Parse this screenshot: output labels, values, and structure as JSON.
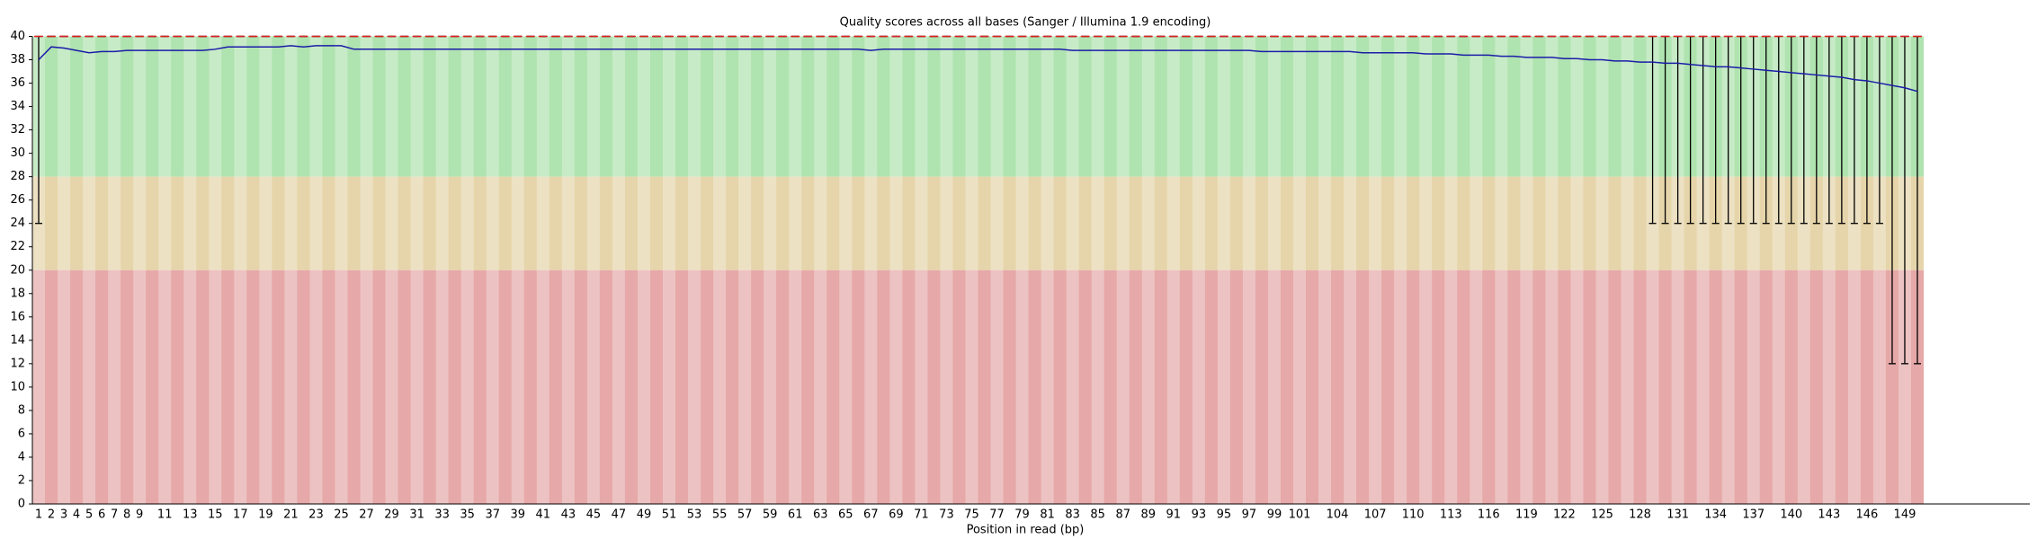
{
  "chart_data": {
    "type": "box",
    "title": "Quality scores across all bases (Sanger / Illumina 1.9 encoding)",
    "x_label": "Position in read (bp)",
    "categories": [
      "1",
      "2",
      "3",
      "4",
      "5",
      "6",
      "7",
      "8",
      "9",
      null,
      "11",
      null,
      "13",
      null,
      "15",
      null,
      "17",
      null,
      "19",
      null,
      "21",
      null,
      "23",
      null,
      "25",
      null,
      "27",
      null,
      "29",
      null,
      "31",
      null,
      "33",
      null,
      "35",
      null,
      "37",
      null,
      "39",
      null,
      "41",
      null,
      "43",
      null,
      "45",
      null,
      "47",
      null,
      "49",
      null,
      "51",
      null,
      "53",
      null,
      "55",
      null,
      "57",
      null,
      "59",
      null,
      "61",
      null,
      "63",
      null,
      "65",
      null,
      "67",
      null,
      "69",
      null,
      "71",
      null,
      "73",
      null,
      "75",
      null,
      "77",
      null,
      "79",
      null,
      "81",
      null,
      "83",
      null,
      "85",
      null,
      "87",
      null,
      "89",
      null,
      "91",
      null,
      "93",
      null,
      "95",
      null,
      "97",
      null,
      "99",
      null,
      "101",
      null,
      null,
      "104",
      null,
      null,
      "107",
      null,
      null,
      "110",
      null,
      null,
      "113",
      null,
      null,
      "116",
      null,
      null,
      "119",
      null,
      null,
      "122",
      null,
      null,
      "125",
      null,
      null,
      "128",
      null,
      null,
      "131",
      null,
      null,
      "134",
      null,
      null,
      "137",
      null,
      null,
      "140",
      null,
      null,
      "143",
      null,
      null,
      "146",
      null,
      null,
      "149",
      null
    ],
    "mean": {
      "color": "#1c1ca8",
      "values": [
        38.0,
        39.1,
        39.0,
        38.8,
        38.6,
        38.7,
        38.7,
        38.8,
        38.8,
        38.8,
        38.8,
        38.8,
        38.8,
        38.8,
        38.9,
        39.1,
        39.1,
        39.1,
        39.1,
        39.1,
        39.2,
        39.1,
        39.2,
        39.2,
        39.2,
        38.9,
        38.9,
        38.9,
        38.9,
        38.9,
        38.9,
        38.9,
        38.9,
        38.9,
        38.9,
        38.9,
        38.9,
        38.9,
        38.9,
        38.9,
        38.9,
        38.9,
        38.9,
        38.9,
        38.9,
        38.9,
        38.9,
        38.9,
        38.9,
        38.9,
        38.9,
        38.9,
        38.9,
        38.9,
        38.9,
        38.9,
        38.9,
        38.9,
        38.9,
        38.9,
        38.9,
        38.9,
        38.9,
        38.9,
        38.9,
        38.9,
        38.8,
        38.9,
        38.9,
        38.9,
        38.9,
        38.9,
        38.9,
        38.9,
        38.9,
        38.9,
        38.9,
        38.9,
        38.9,
        38.9,
        38.9,
        38.9,
        38.8,
        38.8,
        38.8,
        38.8,
        38.8,
        38.8,
        38.8,
        38.8,
        38.8,
        38.8,
        38.8,
        38.8,
        38.8,
        38.8,
        38.8,
        38.7,
        38.7,
        38.7,
        38.7,
        38.7,
        38.7,
        38.7,
        38.7,
        38.6,
        38.6,
        38.6,
        38.6,
        38.6,
        38.5,
        38.5,
        38.5,
        38.4,
        38.4,
        38.4,
        38.3,
        38.3,
        38.2,
        38.2,
        38.2,
        38.1,
        38.1,
        38.0,
        38.0,
        37.9,
        37.9,
        37.8,
        37.8,
        37.7,
        37.7,
        37.6,
        37.5,
        37.4,
        37.4,
        37.3,
        37.2,
        37.1,
        37.0,
        36.9,
        36.8,
        36.7,
        36.6,
        36.5,
        36.3,
        36.2,
        36.0,
        35.8,
        35.6,
        35.3
      ]
    },
    "median": {
      "color": "#e02020",
      "values": [
        40,
        40,
        40,
        40,
        40,
        40,
        40,
        40,
        40,
        40,
        40,
        40,
        40,
        40,
        40,
        40,
        40,
        40,
        40,
        40,
        40,
        40,
        40,
        40,
        40,
        40,
        40,
        40,
        40,
        40,
        40,
        40,
        40,
        40,
        40,
        40,
        40,
        40,
        40,
        40,
        40,
        40,
        40,
        40,
        40,
        40,
        40,
        40,
        40,
        40,
        40,
        40,
        40,
        40,
        40,
        40,
        40,
        40,
        40,
        40,
        40,
        40,
        40,
        40,
        40,
        40,
        40,
        40,
        40,
        40,
        40,
        40,
        40,
        40,
        40,
        40,
        40,
        40,
        40,
        40,
        40,
        40,
        40,
        40,
        40,
        40,
        40,
        40,
        40,
        40,
        40,
        40,
        40,
        40,
        40,
        40,
        40,
        40,
        40,
        40,
        40,
        40,
        40,
        40,
        40,
        40,
        40,
        40,
        40,
        40,
        40,
        40,
        40,
        40,
        40,
        40,
        40,
        40,
        40,
        40,
        40,
        40,
        40,
        40,
        40,
        40,
        40,
        40,
        40,
        40,
        40,
        40,
        40,
        40,
        40,
        40,
        40,
        40,
        40,
        40,
        40,
        40,
        40,
        40,
        40,
        40,
        40,
        40,
        40,
        40
      ]
    },
    "whisker_low": {
      "color": "#000000",
      "values": [
        24,
        40,
        40,
        40,
        40,
        40,
        40,
        40,
        40,
        40,
        40,
        40,
        40,
        40,
        40,
        40,
        40,
        40,
        40,
        40,
        40,
        40,
        40,
        40,
        40,
        40,
        40,
        40,
        40,
        40,
        40,
        40,
        40,
        40,
        40,
        40,
        40,
        40,
        40,
        40,
        40,
        40,
        40,
        40,
        40,
        40,
        40,
        40,
        40,
        40,
        40,
        40,
        40,
        40,
        40,
        40,
        40,
        40,
        40,
        40,
        40,
        40,
        40,
        40,
        40,
        40,
        40,
        40,
        40,
        40,
        40,
        40,
        40,
        40,
        40,
        40,
        40,
        40,
        40,
        40,
        40,
        40,
        40,
        40,
        40,
        40,
        40,
        40,
        40,
        40,
        40,
        40,
        40,
        40,
        40,
        40,
        40,
        40,
        40,
        40,
        40,
        40,
        40,
        40,
        40,
        40,
        40,
        40,
        40,
        40,
        40,
        40,
        40,
        40,
        40,
        40,
        40,
        40,
        40,
        40,
        40,
        40,
        40,
        40,
        40,
        40,
        40,
        40,
        24,
        24,
        24,
        24,
        24,
        24,
        24,
        24,
        24,
        24,
        24,
        24,
        24,
        24,
        24,
        24,
        24,
        24,
        24,
        12,
        12,
        12
      ]
    },
    "whisker_high": {
      "color": "#000000",
      "values": [
        40,
        40,
        40,
        40,
        40,
        40,
        40,
        40,
        40,
        40,
        40,
        40,
        40,
        40,
        40,
        40,
        40,
        40,
        40,
        40,
        40,
        40,
        40,
        40,
        40,
        40,
        40,
        40,
        40,
        40,
        40,
        40,
        40,
        40,
        40,
        40,
        40,
        40,
        40,
        40,
        40,
        40,
        40,
        40,
        40,
        40,
        40,
        40,
        40,
        40,
        40,
        40,
        40,
        40,
        40,
        40,
        40,
        40,
        40,
        40,
        40,
        40,
        40,
        40,
        40,
        40,
        40,
        40,
        40,
        40,
        40,
        40,
        40,
        40,
        40,
        40,
        40,
        40,
        40,
        40,
        40,
        40,
        40,
        40,
        40,
        40,
        40,
        40,
        40,
        40,
        40,
        40,
        40,
        40,
        40,
        40,
        40,
        40,
        40,
        40,
        40,
        40,
        40,
        40,
        40,
        40,
        40,
        40,
        40,
        40,
        40,
        40,
        40,
        40,
        40,
        40,
        40,
        40,
        40,
        40,
        40,
        40,
        40,
        40,
        40,
        40,
        40,
        40,
        40,
        40,
        40,
        40,
        40,
        40,
        40,
        40,
        40,
        40,
        40,
        40,
        40,
        40,
        40,
        40,
        40,
        40,
        40,
        40,
        40,
        40
      ]
    },
    "bands": [
      {
        "from": 28,
        "to": 40,
        "color": "#afe3af"
      },
      {
        "from": 20,
        "to": 28,
        "color": "#e6d5aa"
      },
      {
        "from": 0,
        "to": 20,
        "color": "#e6a8a8"
      }
    ],
    "ylim": [
      0,
      40
    ],
    "yticks": [
      0,
      2,
      4,
      6,
      8,
      10,
      12,
      14,
      16,
      18,
      20,
      22,
      24,
      26,
      28,
      30,
      32,
      34,
      36,
      38,
      40
    ]
  }
}
